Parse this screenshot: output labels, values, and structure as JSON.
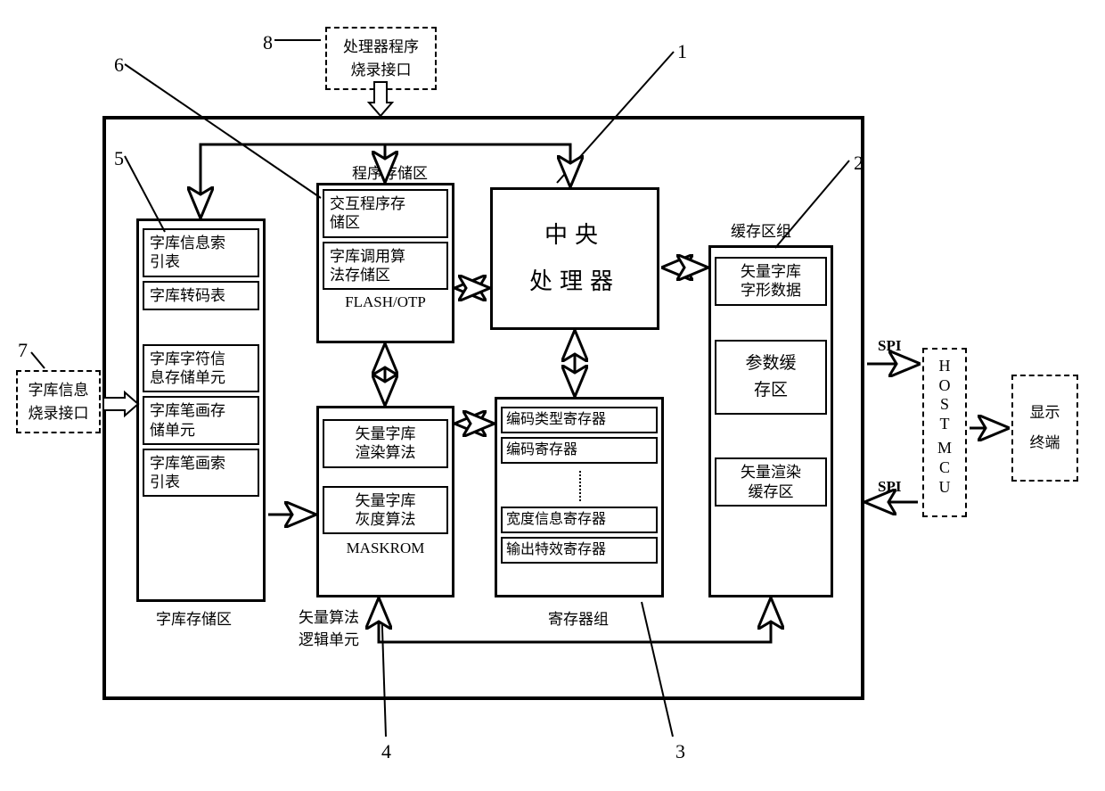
{
  "callouts": {
    "n1": "1",
    "n2": "2",
    "n3": "3",
    "n4": "4",
    "n5": "5",
    "n6": "6",
    "n7": "7",
    "n8": "8"
  },
  "external": {
    "proc_burn_interface": "处理器程序\n烧录接口",
    "font_burn_interface": "字库信息\n烧录接口",
    "host_mcu": "HOST MCU",
    "display_terminal": "显示\n终端",
    "spi_top": "SPI",
    "spi_bottom": "SPI"
  },
  "cpu": {
    "title": "中央\n处理器"
  },
  "prog_storage": {
    "title": "程序存储区",
    "box1": "交互程序存\n储区",
    "box2": "字库调用算\n法存储区",
    "sub": "FLASH/OTP"
  },
  "font_storage": {
    "title": "字库存储区",
    "b1": "字库信息索\n引表",
    "b2": "字库转码表",
    "b3": "字库字符信\n息存储单元",
    "b4": "字库笔画存\n储单元",
    "b5": "字库笔画索\n引表"
  },
  "maskrom": {
    "b1": "矢量字库\n渲染算法",
    "b2": "矢量字库\n灰度算法",
    "sub": "MASKROM",
    "below1": "矢量算法",
    "below2": "逻辑单元"
  },
  "registers": {
    "title": "寄存器组",
    "b1": "编码类型寄存器",
    "b2": "编码寄存器",
    "b3": "宽度信息寄存器",
    "b4": "输出特效寄存器"
  },
  "cache": {
    "title": "缓存区组",
    "b1": "矢量字库\n字形数据",
    "b2": "参数缓\n存区",
    "b3": "矢量渲染\n缓存区"
  },
  "style": {
    "stroke": "#000000",
    "arrow_fill": "#ffffff"
  }
}
